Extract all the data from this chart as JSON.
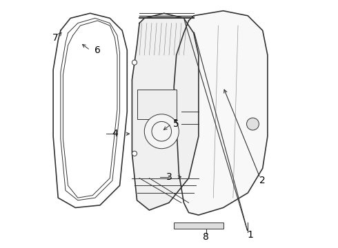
{
  "bg_color": "#ffffff",
  "line_color": "#333333",
  "label_color": "#000000",
  "font_size": 10,
  "figsize": [
    4.9,
    3.6
  ],
  "dpi": 100,
  "lw_main": 1.2,
  "lw_thin": 0.7
}
